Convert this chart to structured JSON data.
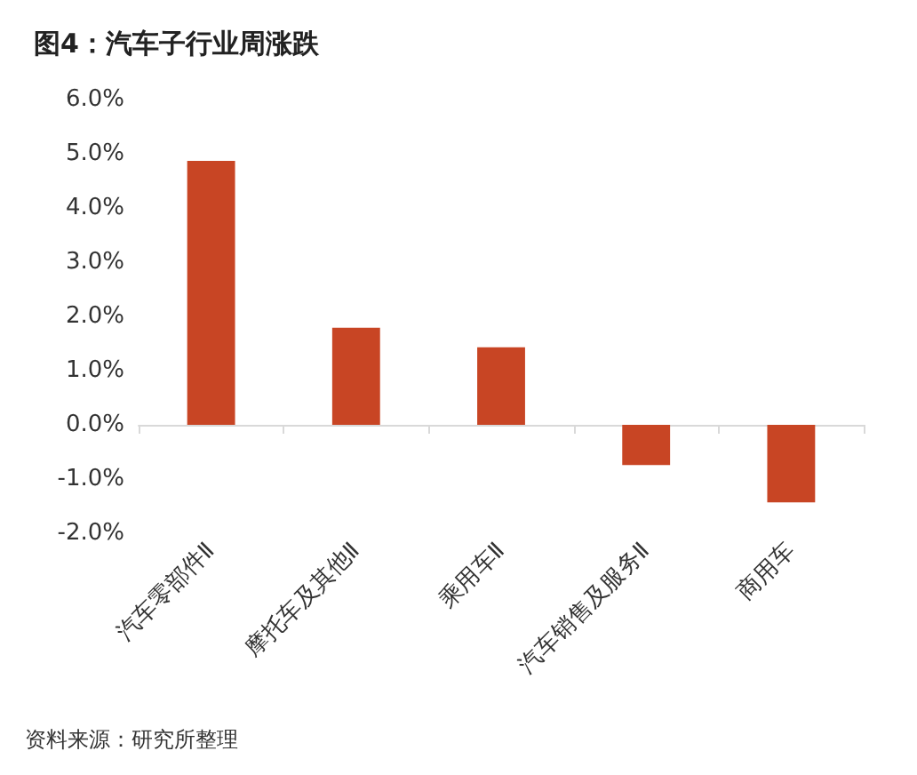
{
  "chart_data": {
    "type": "bar",
    "title": "图4：汽车子行业周涨跌",
    "categories": [
      "汽车零部件Ⅱ",
      "摩托车及其他Ⅱ",
      "乘用车Ⅱ",
      "汽车销售及服务Ⅱ",
      "商用车"
    ],
    "values": [
      4.87,
      1.79,
      1.43,
      -0.74,
      -1.43
    ],
    "color": "#c84524",
    "ylim": [
      -2,
      6
    ],
    "yticks": [
      {
        "value": -2,
        "label": "-2.0%"
      },
      {
        "value": -1,
        "label": "-1.0%"
      },
      {
        "value": 0,
        "label": "0.0%"
      },
      {
        "value": 1,
        "label": "1.0%"
      },
      {
        "value": 2,
        "label": "2.0%"
      },
      {
        "value": 3,
        "label": "3.0%"
      },
      {
        "value": 4,
        "label": "4.0%"
      },
      {
        "value": 5,
        "label": "5.0%"
      },
      {
        "value": 6,
        "label": "6.0%"
      }
    ],
    "annotations": [
      "资料来源：研究所整理"
    ]
  }
}
